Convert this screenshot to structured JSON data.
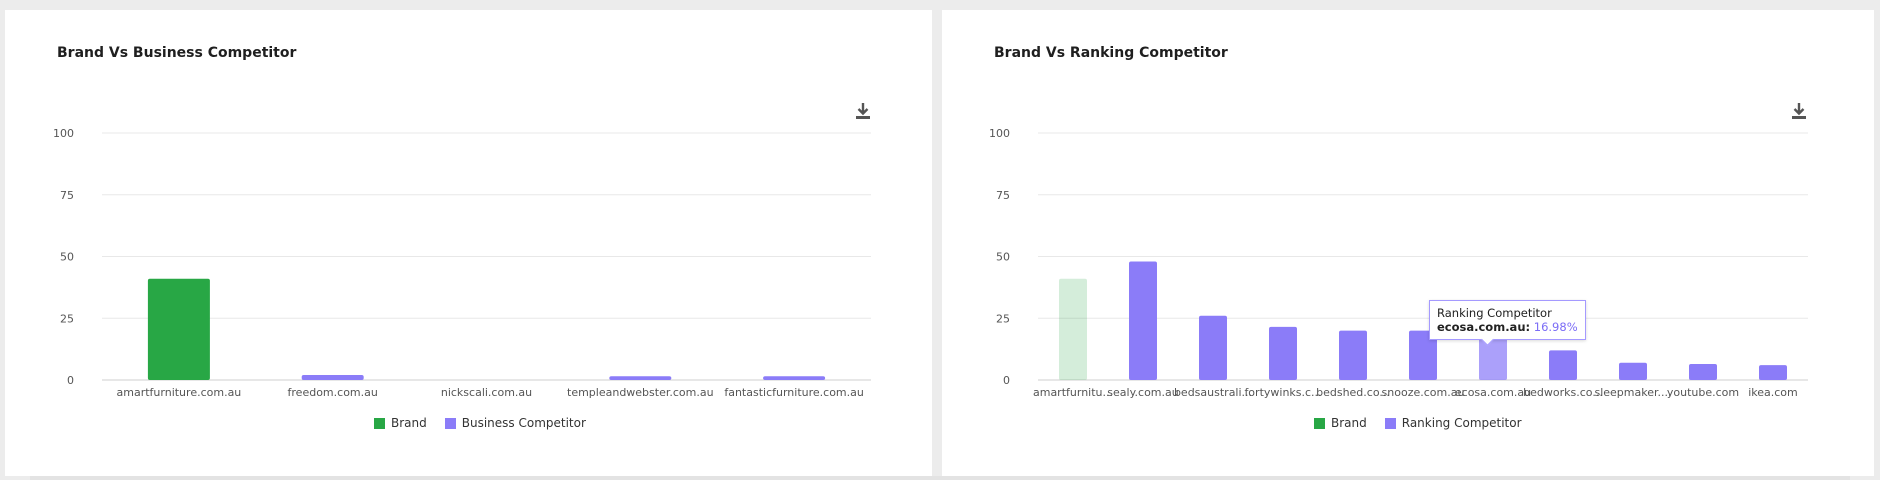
{
  "colors": {
    "brand": "#28a745",
    "competitor": "#8b7cf8",
    "grid": "#e8e8e8",
    "axis_text": "#555555"
  },
  "panels": {
    "left": {
      "title": "Brand Vs Business Competitor",
      "legend": [
        "Brand",
        "Business Competitor"
      ]
    },
    "right": {
      "title": "Brand Vs Ranking Competitor",
      "legend": [
        "Brand",
        "Ranking Competitor"
      ],
      "tooltip": {
        "series": "Ranking Competitor",
        "category": "ecosa.com.au:",
        "value": "16.98%"
      }
    }
  },
  "icons": {
    "download": "download-icon"
  },
  "chart_data": [
    {
      "type": "bar",
      "title": "Brand Vs Business Competitor",
      "categories": [
        "amartfurniture.com.au",
        "freedom.com.au",
        "nickscali.com.au",
        "templeandwebster.com.au",
        "fantasticfurniture.com.au"
      ],
      "series": [
        {
          "name": "Brand",
          "values": [
            41,
            null,
            null,
            null,
            null
          ]
        },
        {
          "name": "Business Competitor",
          "values": [
            null,
            2,
            0,
            1.5,
            1.5
          ]
        }
      ],
      "ylim": [
        0,
        100
      ],
      "yticks": [
        0,
        25,
        50,
        75,
        100
      ],
      "grid": true,
      "legend_position": "bottom-center"
    },
    {
      "type": "bar",
      "title": "Brand Vs Ranking Competitor",
      "categories": [
        "amartfurnitu...",
        "sealy.com.au",
        "bedsaustrali...",
        "fortywinks.c...",
        "bedshed.co...",
        "snooze.com.au",
        "ecosa.com.au",
        "bedworks.co...",
        "sleepmaker....",
        "youtube.com",
        "ikea.com"
      ],
      "series": [
        {
          "name": "Brand",
          "values": [
            41,
            null,
            null,
            null,
            null,
            null,
            null,
            null,
            null,
            null,
            null
          ]
        },
        {
          "name": "Ranking Competitor",
          "values": [
            null,
            48,
            26,
            21.5,
            20,
            20,
            16.98,
            12,
            7,
            6.5,
            6
          ]
        }
      ],
      "ylim": [
        0,
        100
      ],
      "yticks": [
        0,
        25,
        50,
        75,
        100
      ],
      "grid": true,
      "legend_position": "bottom-center",
      "highlighted_category": "ecosa.com.au"
    }
  ]
}
